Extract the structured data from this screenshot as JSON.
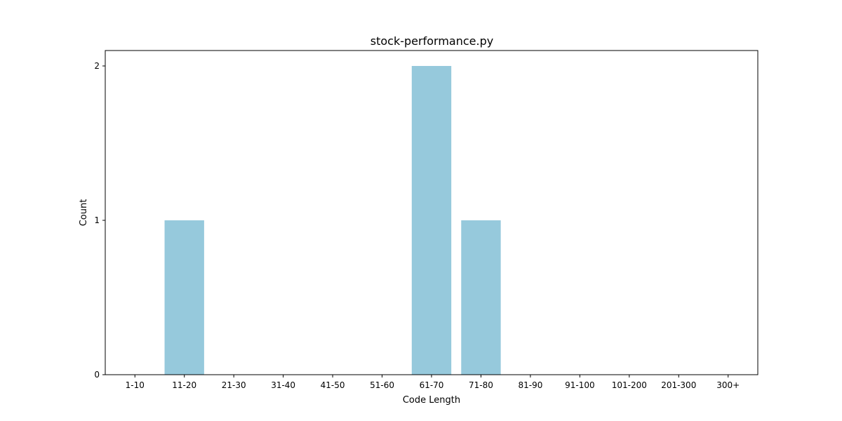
{
  "chart_data": {
    "type": "bar",
    "title": "stock-performance.py",
    "xlabel": "Code Length",
    "ylabel": "Count",
    "categories": [
      "1-10",
      "11-20",
      "21-30",
      "31-40",
      "41-50",
      "51-60",
      "61-70",
      "71-80",
      "81-90",
      "91-100",
      "101-200",
      "201-300",
      "300+"
    ],
    "values": [
      0,
      1,
      0,
      0,
      0,
      0,
      2,
      1,
      0,
      0,
      0,
      0,
      0
    ],
    "ylim": [
      0,
      2.1
    ],
    "yticks": [
      0,
      1,
      2
    ],
    "grid": false,
    "bar_color": "#96c9dc"
  }
}
